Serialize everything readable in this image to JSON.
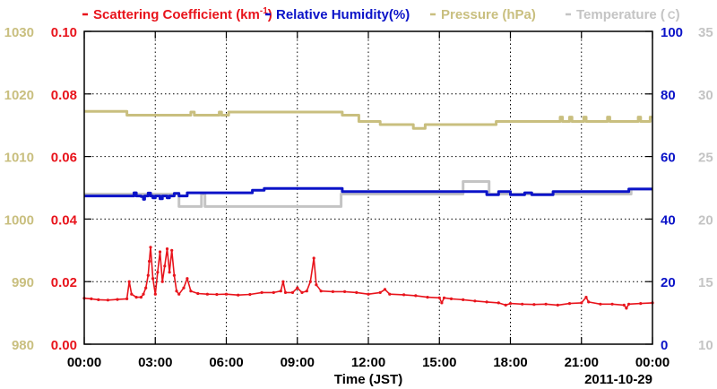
{
  "chart_data": {
    "type": "line",
    "title": "",
    "legend": {
      "placement": "top",
      "entries": [
        {
          "key": "scatter",
          "text": "Scattering Coefficient (km",
          "sup": "-1",
          "tail": ")",
          "color": "#e8141c"
        },
        {
          "key": "rh",
          "text": "Relative Humidity(%)",
          "color": "#0b13c8"
        },
        {
          "key": "pressure",
          "text": "Pressure (hPa)",
          "color": "#c9bf7f"
        },
        {
          "key": "temp",
          "text": "Temperature (",
          "unit": "C",
          "tail": ")",
          "color": "#c4c4c4"
        }
      ]
    },
    "xlabel": "Time (JST)",
    "date_label": "2011-10-29",
    "x_ticks": [
      "00:00",
      "03:00",
      "06:00",
      "09:00",
      "12:00",
      "15:00",
      "18:00",
      "21:00",
      "00:00"
    ],
    "x_range_hours": [
      0,
      24
    ],
    "grid": true,
    "axes": {
      "pressure": {
        "side": "left-outer",
        "range": [
          980,
          1030
        ],
        "ticks": [
          "980",
          "990",
          "1000",
          "1010",
          "1020",
          "1030"
        ],
        "color": "#c9bf7f"
      },
      "scatter": {
        "side": "left-inner",
        "range": [
          0,
          0.1
        ],
        "ticks": [
          "0.00",
          "0.02",
          "0.04",
          "0.06",
          "0.08",
          "0.10"
        ],
        "color": "#e8141c"
      },
      "rh": {
        "side": "right-inner",
        "range": [
          0,
          100
        ],
        "ticks": [
          "0",
          "20",
          "40",
          "60",
          "80",
          "100"
        ],
        "color": "#0b13c8"
      },
      "temp": {
        "side": "right-outer",
        "range": [
          10,
          35
        ],
        "ticks": [
          "10",
          "15",
          "20",
          "25",
          "30",
          "35"
        ],
        "color": "#c4c4c4"
      }
    },
    "series": [
      {
        "name": "Pressure (hPa)",
        "axis": "pressure",
        "color": "#c9bf7f",
        "step": true,
        "points": [
          [
            0,
            1017.2
          ],
          [
            1.8,
            1016.6
          ],
          [
            4.4,
            1016.6
          ],
          [
            4.5,
            1017.1
          ],
          [
            4.65,
            1016.6
          ],
          [
            5.6,
            1016.6
          ],
          [
            5.7,
            1017.1
          ],
          [
            5.8,
            1016.6
          ],
          [
            6.0,
            1016.6
          ],
          [
            6.1,
            1017.1
          ],
          [
            10.8,
            1017.1
          ],
          [
            10.9,
            1016.6
          ],
          [
            11.55,
            1016.6
          ],
          [
            11.6,
            1015.6
          ],
          [
            12.4,
            1015.6
          ],
          [
            12.5,
            1015.1
          ],
          [
            13.8,
            1015.1
          ],
          [
            13.9,
            1014.5
          ],
          [
            14.3,
            1014.5
          ],
          [
            14.4,
            1015.1
          ],
          [
            17.3,
            1015.1
          ],
          [
            17.4,
            1015.6
          ],
          [
            20.0,
            1015.6
          ],
          [
            20.1,
            1016.3
          ],
          [
            20.2,
            1015.6
          ],
          [
            20.4,
            1015.6
          ],
          [
            20.5,
            1016.3
          ],
          [
            20.6,
            1015.6
          ],
          [
            21.0,
            1015.6
          ],
          [
            21.1,
            1016.3
          ],
          [
            21.2,
            1015.6
          ],
          [
            22.0,
            1015.6
          ],
          [
            22.1,
            1016.3
          ],
          [
            22.2,
            1015.6
          ],
          [
            23.3,
            1015.6
          ],
          [
            23.4,
            1016.3
          ],
          [
            23.5,
            1015.6
          ],
          [
            23.8,
            1015.6
          ],
          [
            23.9,
            1016.3
          ],
          [
            24,
            1016.3
          ]
        ]
      },
      {
        "name": "Temperature (C)",
        "axis": "temp",
        "color": "#c4c4c4",
        "step": true,
        "points": [
          [
            0,
            22.0
          ],
          [
            3.9,
            22.0
          ],
          [
            4.0,
            21.0
          ],
          [
            4.9,
            21.0
          ],
          [
            4.95,
            22.0
          ],
          [
            5.05,
            22.0
          ],
          [
            5.1,
            21.0
          ],
          [
            10.8,
            21.0
          ],
          [
            10.85,
            22.0
          ],
          [
            15.9,
            22.0
          ],
          [
            16.0,
            23.0
          ],
          [
            17.0,
            23.0
          ],
          [
            17.1,
            22.0
          ],
          [
            23.0,
            22.0
          ],
          [
            23.1,
            22.4
          ],
          [
            24,
            22.4
          ]
        ]
      },
      {
        "name": "Relative Humidity(%)",
        "axis": "rh",
        "color": "#0b13c8",
        "step": true,
        "points": [
          [
            0,
            47.4
          ],
          [
            2.0,
            47.4
          ],
          [
            2.1,
            48.4
          ],
          [
            2.2,
            47.4
          ],
          [
            2.4,
            47.2
          ],
          [
            2.5,
            46.3
          ],
          [
            2.55,
            47.4
          ],
          [
            2.7,
            48.3
          ],
          [
            2.8,
            47.4
          ],
          [
            2.9,
            46.8
          ],
          [
            3.0,
            47.4
          ],
          [
            3.2,
            46.5
          ],
          [
            3.3,
            47.4
          ],
          [
            3.5,
            46.8
          ],
          [
            3.6,
            47.4
          ],
          [
            3.8,
            48.2
          ],
          [
            4.0,
            47.4
          ],
          [
            4.3,
            47.4
          ],
          [
            4.35,
            48.4
          ],
          [
            5.3,
            48.4
          ],
          [
            5.4,
            48.4
          ],
          [
            7.0,
            48.4
          ],
          [
            7.1,
            49.2
          ],
          [
            7.5,
            49.2
          ],
          [
            7.6,
            49.8
          ],
          [
            10.8,
            49.8
          ],
          [
            10.9,
            48.8
          ],
          [
            16.9,
            48.8
          ],
          [
            17.0,
            47.8
          ],
          [
            17.4,
            47.8
          ],
          [
            17.5,
            48.8
          ],
          [
            17.9,
            48.8
          ],
          [
            18.0,
            47.8
          ],
          [
            18.5,
            47.8
          ],
          [
            18.6,
            48.4
          ],
          [
            18.8,
            48.4
          ],
          [
            18.9,
            47.8
          ],
          [
            19.7,
            47.8
          ],
          [
            19.8,
            48.8
          ],
          [
            22.9,
            48.8
          ],
          [
            23.0,
            49.6
          ],
          [
            24,
            49.6
          ]
        ]
      },
      {
        "name": "Scattering Coefficient (km-1)",
        "axis": "scatter",
        "color": "#e8141c",
        "step": false,
        "points": [
          [
            0,
            0.0147
          ],
          [
            0.3,
            0.0145
          ],
          [
            0.6,
            0.0142
          ],
          [
            1.0,
            0.0141
          ],
          [
            1.4,
            0.0143
          ],
          [
            1.8,
            0.0145
          ],
          [
            1.9,
            0.02
          ],
          [
            2.0,
            0.016
          ],
          [
            2.2,
            0.015
          ],
          [
            2.4,
            0.015
          ],
          [
            2.5,
            0.016
          ],
          [
            2.6,
            0.018
          ],
          [
            2.7,
            0.022
          ],
          [
            2.75,
            0.0265
          ],
          [
            2.8,
            0.031
          ],
          [
            2.9,
            0.021
          ],
          [
            3.0,
            0.016
          ],
          [
            3.1,
            0.023
          ],
          [
            3.2,
            0.0295
          ],
          [
            3.3,
            0.02
          ],
          [
            3.4,
            0.025
          ],
          [
            3.5,
            0.0305
          ],
          [
            3.6,
            0.023
          ],
          [
            3.7,
            0.03
          ],
          [
            3.8,
            0.022
          ],
          [
            3.9,
            0.017
          ],
          [
            4.0,
            0.016
          ],
          [
            4.2,
            0.018
          ],
          [
            4.35,
            0.021
          ],
          [
            4.5,
            0.017
          ],
          [
            4.8,
            0.0162
          ],
          [
            5.2,
            0.016
          ],
          [
            5.6,
            0.0159
          ],
          [
            6.0,
            0.016
          ],
          [
            6.5,
            0.0157
          ],
          [
            7.0,
            0.0159
          ],
          [
            7.5,
            0.0165
          ],
          [
            8.0,
            0.0165
          ],
          [
            8.3,
            0.017
          ],
          [
            8.4,
            0.02
          ],
          [
            8.5,
            0.0165
          ],
          [
            8.8,
            0.0165
          ],
          [
            9.0,
            0.018
          ],
          [
            9.2,
            0.0165
          ],
          [
            9.4,
            0.017
          ],
          [
            9.55,
            0.02
          ],
          [
            9.7,
            0.0275
          ],
          [
            9.8,
            0.019
          ],
          [
            10.0,
            0.017
          ],
          [
            10.5,
            0.0168
          ],
          [
            11.0,
            0.0168
          ],
          [
            11.5,
            0.0165
          ],
          [
            12.0,
            0.016
          ],
          [
            12.5,
            0.0165
          ],
          [
            12.7,
            0.0175
          ],
          [
            12.9,
            0.016
          ],
          [
            13.5,
            0.0158
          ],
          [
            14.0,
            0.0155
          ],
          [
            14.5,
            0.015
          ],
          [
            15.0,
            0.0148
          ],
          [
            15.1,
            0.0132
          ],
          [
            15.2,
            0.0148
          ],
          [
            15.5,
            0.0145
          ],
          [
            16.0,
            0.0142
          ],
          [
            16.5,
            0.0138
          ],
          [
            17.0,
            0.0135
          ],
          [
            17.5,
            0.0132
          ],
          [
            17.8,
            0.0125
          ],
          [
            18.0,
            0.013
          ],
          [
            18.5,
            0.0128
          ],
          [
            19.0,
            0.0127
          ],
          [
            19.5,
            0.0128
          ],
          [
            20.0,
            0.0125
          ],
          [
            20.5,
            0.013
          ],
          [
            21.0,
            0.0132
          ],
          [
            21.2,
            0.015
          ],
          [
            21.3,
            0.0135
          ],
          [
            21.8,
            0.0128
          ],
          [
            22.3,
            0.0128
          ],
          [
            22.8,
            0.0125
          ],
          [
            22.9,
            0.0115
          ],
          [
            23.0,
            0.0128
          ],
          [
            23.5,
            0.013
          ],
          [
            24,
            0.0132
          ]
        ]
      }
    ]
  }
}
